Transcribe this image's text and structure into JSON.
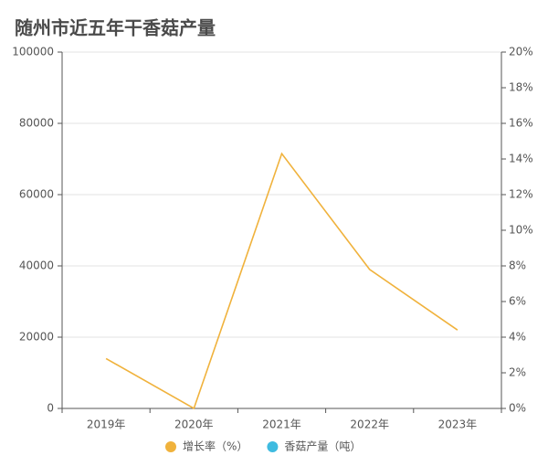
{
  "chart_data": {
    "type": "line",
    "title": "随州市近五年干香菇产量",
    "categories": [
      "2019年",
      "2020年",
      "2021年",
      "2022年",
      "2023年"
    ],
    "series": [
      {
        "name": "增长率（%）",
        "color": "#f0b23c",
        "type": "line",
        "axis": "y2",
        "values": [
          2.8,
          0,
          14.3,
          7.8,
          4.4
        ]
      },
      {
        "name": "香菇产量（吨）",
        "color": "#3fbbe0",
        "type": "bar",
        "values": [
          null,
          null,
          null,
          null,
          null
        ]
      }
    ],
    "ylim": [
      0,
      100000
    ],
    "yticks": [
      0,
      20000,
      40000,
      60000,
      80000,
      100000
    ],
    "y2lim": [
      0,
      20
    ],
    "y2ticks": [
      {
        "value": 0,
        "label": "0%"
      },
      {
        "value": 2,
        "label": "2%"
      },
      {
        "value": 4,
        "label": "4%"
      },
      {
        "value": 6,
        "label": "6%"
      },
      {
        "value": 8,
        "label": "8%"
      },
      {
        "value": 10,
        "label": "10%"
      },
      {
        "value": 12,
        "label": "12%"
      },
      {
        "value": 14,
        "label": "14%"
      },
      {
        "value": 16,
        "label": "16%"
      },
      {
        "value": 18,
        "label": "18%"
      },
      {
        "value": 20,
        "label": "20%"
      }
    ],
    "grid": true,
    "legend": "bottom"
  }
}
